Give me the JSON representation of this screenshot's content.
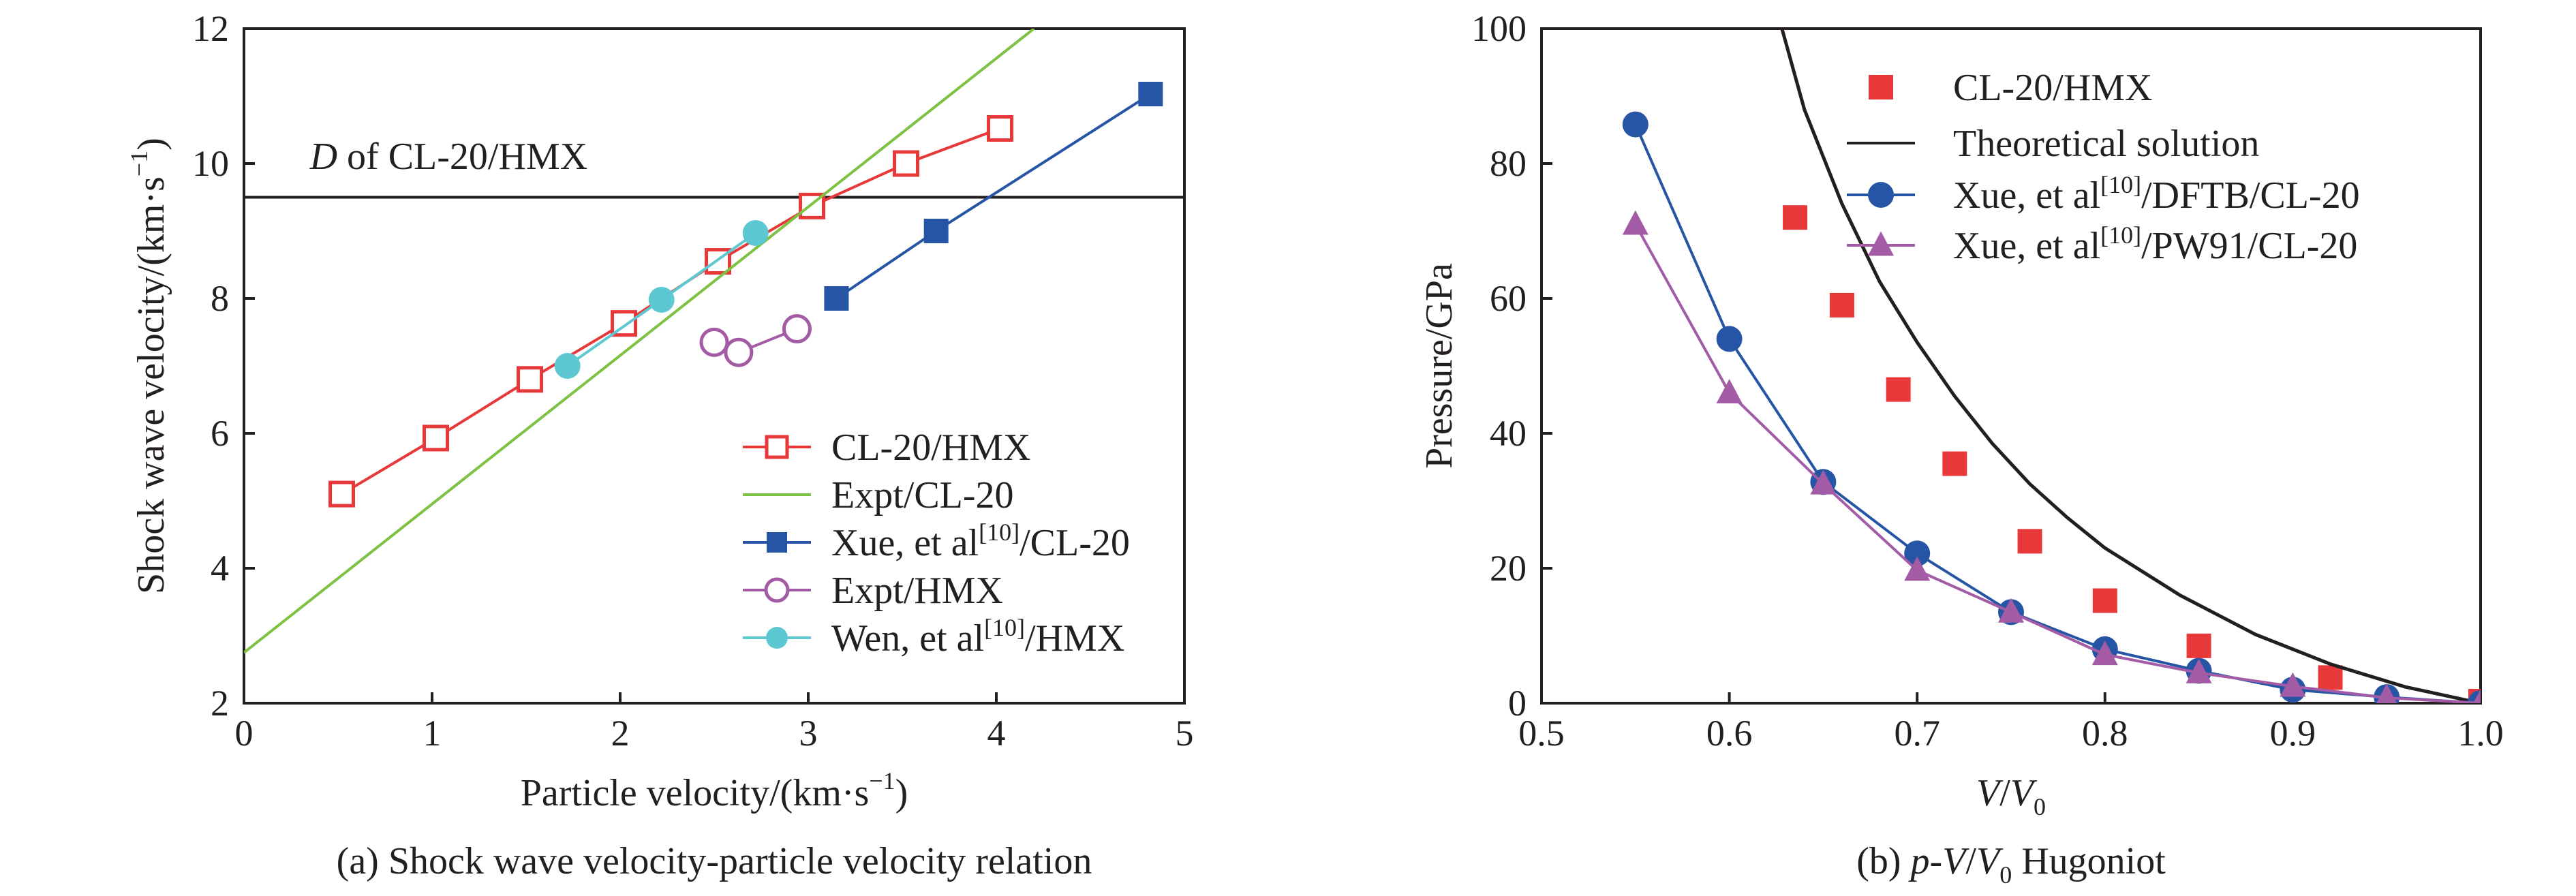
{
  "chart_data": [
    {
      "panel": "a",
      "type": "line",
      "caption": "(a) Shock wave velocity-particle velocity relation",
      "xlabel": "Particle velocity/(km·s",
      "xlabel_sup": "−1",
      "xlabel_tail": ")",
      "ylabel": "Shock wave velocity/(km·s",
      "ylabel_sup": "−1",
      "ylabel_tail": ")",
      "xlim": [
        0,
        5
      ],
      "ylim": [
        2,
        12
      ],
      "xticks": [
        0,
        1,
        2,
        3,
        4,
        5
      ],
      "yticks": [
        2,
        4,
        6,
        8,
        10,
        12
      ],
      "grid": false,
      "legend_position": "bottom-right",
      "annotation": {
        "italic": "D",
        "text": " of CL-20/HMX",
        "x": 0.35,
        "y": 10.1
      },
      "hline": {
        "y": 9.5,
        "color": "#231f20"
      },
      "series": [
        {
          "name": "CL-20/HMX",
          "sup": "",
          "tail": "",
          "color": "#e8393a",
          "marker": "square-open",
          "line": true,
          "points": [
            [
              0.52,
              5.1
            ],
            [
              1.02,
              5.93
            ],
            [
              1.52,
              6.8
            ],
            [
              2.02,
              7.63
            ],
            [
              2.52,
              8.55
            ],
            [
              3.02,
              9.37
            ],
            [
              3.52,
              10.0
            ],
            [
              4.02,
              10.52
            ]
          ]
        },
        {
          "name": "Expt/CL-20",
          "sup": "",
          "tail": "",
          "color": "#7dc242",
          "marker": "none",
          "line": true,
          "points": [
            [
              0,
              2.75
            ],
            [
              4.2,
              12.0
            ]
          ]
        },
        {
          "name": "Xue, et al",
          "sup": "[10]",
          "tail": "/CL-20",
          "color": "#2655a5",
          "marker": "square-filled",
          "line": true,
          "points": [
            [
              3.15,
              8.0
            ],
            [
              3.68,
              9.0
            ],
            [
              4.82,
              11.03
            ]
          ]
        },
        {
          "name": "Expt/HMX",
          "sup": "",
          "tail": "",
          "color": "#a45ba6",
          "marker": "circle-open",
          "line": true,
          "points": [
            [
              2.5,
              7.35
            ],
            [
              2.63,
              7.2
            ],
            [
              2.94,
              7.55
            ]
          ]
        },
        {
          "name": "Wen, et al",
          "sup": "[10]",
          "tail": "/HMX",
          "color": "#5dc8d2",
          "marker": "circle-filled",
          "line": true,
          "points": [
            [
              1.72,
              7.0
            ],
            [
              2.22,
              7.98
            ],
            [
              2.72,
              8.97
            ]
          ]
        }
      ]
    },
    {
      "panel": "b",
      "type": "line",
      "caption_pre": "(b) ",
      "caption_italic": "p",
      "caption_mid": "-",
      "caption_italic2": "V",
      "caption_slash": "/",
      "caption_italic3": "V",
      "caption_sub": "0",
      "caption_post": " Hugoniot",
      "xlabel_italic": "V",
      "xlabel_slash": "/",
      "xlabel_italic2": "V",
      "xlabel_sub": "0",
      "ylabel": "Pressure/GPa",
      "xlim": [
        0.5,
        1.0
      ],
      "ylim": [
        0,
        100
      ],
      "xticks": [
        0.5,
        0.6,
        0.7,
        0.8,
        0.9,
        1.0
      ],
      "xtick_labels": [
        "0.5",
        "0.6",
        "0.7",
        "0.8",
        "0.9",
        "1.0"
      ],
      "yticks": [
        0,
        20,
        40,
        60,
        80,
        100
      ],
      "grid": false,
      "legend_position": "top-right",
      "series": [
        {
          "name": "CL-20/HMX",
          "sup": "",
          "tail": "",
          "color": "#e8393a",
          "marker": "square-filled",
          "line": false,
          "points": [
            [
              0.635,
              72.0
            ],
            [
              0.66,
              59.0
            ],
            [
              0.69,
              46.5
            ],
            [
              0.72,
              35.5
            ],
            [
              0.76,
              24.0
            ],
            [
              0.8,
              15.2
            ],
            [
              0.85,
              8.5
            ],
            [
              0.92,
              3.8
            ],
            [
              1.0,
              0.3
            ]
          ]
        },
        {
          "name": "Theoretical solution",
          "sup": "",
          "tail": "",
          "color": "#231f20",
          "marker": "none",
          "line": true,
          "points": [
            [
              0.628,
              100.0
            ],
            [
              0.64,
              88.0
            ],
            [
              0.66,
              74.0
            ],
            [
              0.68,
              62.5
            ],
            [
              0.7,
              53.5
            ],
            [
              0.72,
              45.5
            ],
            [
              0.74,
              38.5
            ],
            [
              0.76,
              32.5
            ],
            [
              0.78,
              27.5
            ],
            [
              0.8,
              23.0
            ],
            [
              0.84,
              16.0
            ],
            [
              0.88,
              10.2
            ],
            [
              0.92,
              5.8
            ],
            [
              0.96,
              2.4
            ],
            [
              1.0,
              0.0
            ]
          ]
        },
        {
          "name": "Xue, et al",
          "sup": "[10]",
          "tail": "/DFTB/CL-20",
          "color": "#2655a5",
          "marker": "circle-filled",
          "line": true,
          "points": [
            [
              0.55,
              85.8
            ],
            [
              0.6,
              54.0
            ],
            [
              0.65,
              32.8
            ],
            [
              0.7,
              22.2
            ],
            [
              0.75,
              13.5
            ],
            [
              0.8,
              8.0
            ],
            [
              0.85,
              4.8
            ],
            [
              0.9,
              2.0
            ],
            [
              0.95,
              0.9
            ],
            [
              1.0,
              0.0
            ]
          ]
        },
        {
          "name": "Xue, et al",
          "sup": "[10]",
          "tail": "/PW91/CL-20",
          "color": "#a45ba6",
          "marker": "triangle-filled",
          "line": true,
          "points": [
            [
              0.55,
              71.0
            ],
            [
              0.6,
              46.0
            ],
            [
              0.65,
              32.5
            ],
            [
              0.7,
              19.7
            ],
            [
              0.75,
              13.5
            ],
            [
              0.8,
              7.2
            ],
            [
              0.85,
              4.5
            ],
            [
              0.9,
              2.5
            ],
            [
              0.95,
              0.8
            ],
            [
              1.0,
              0.0
            ]
          ]
        }
      ]
    }
  ]
}
